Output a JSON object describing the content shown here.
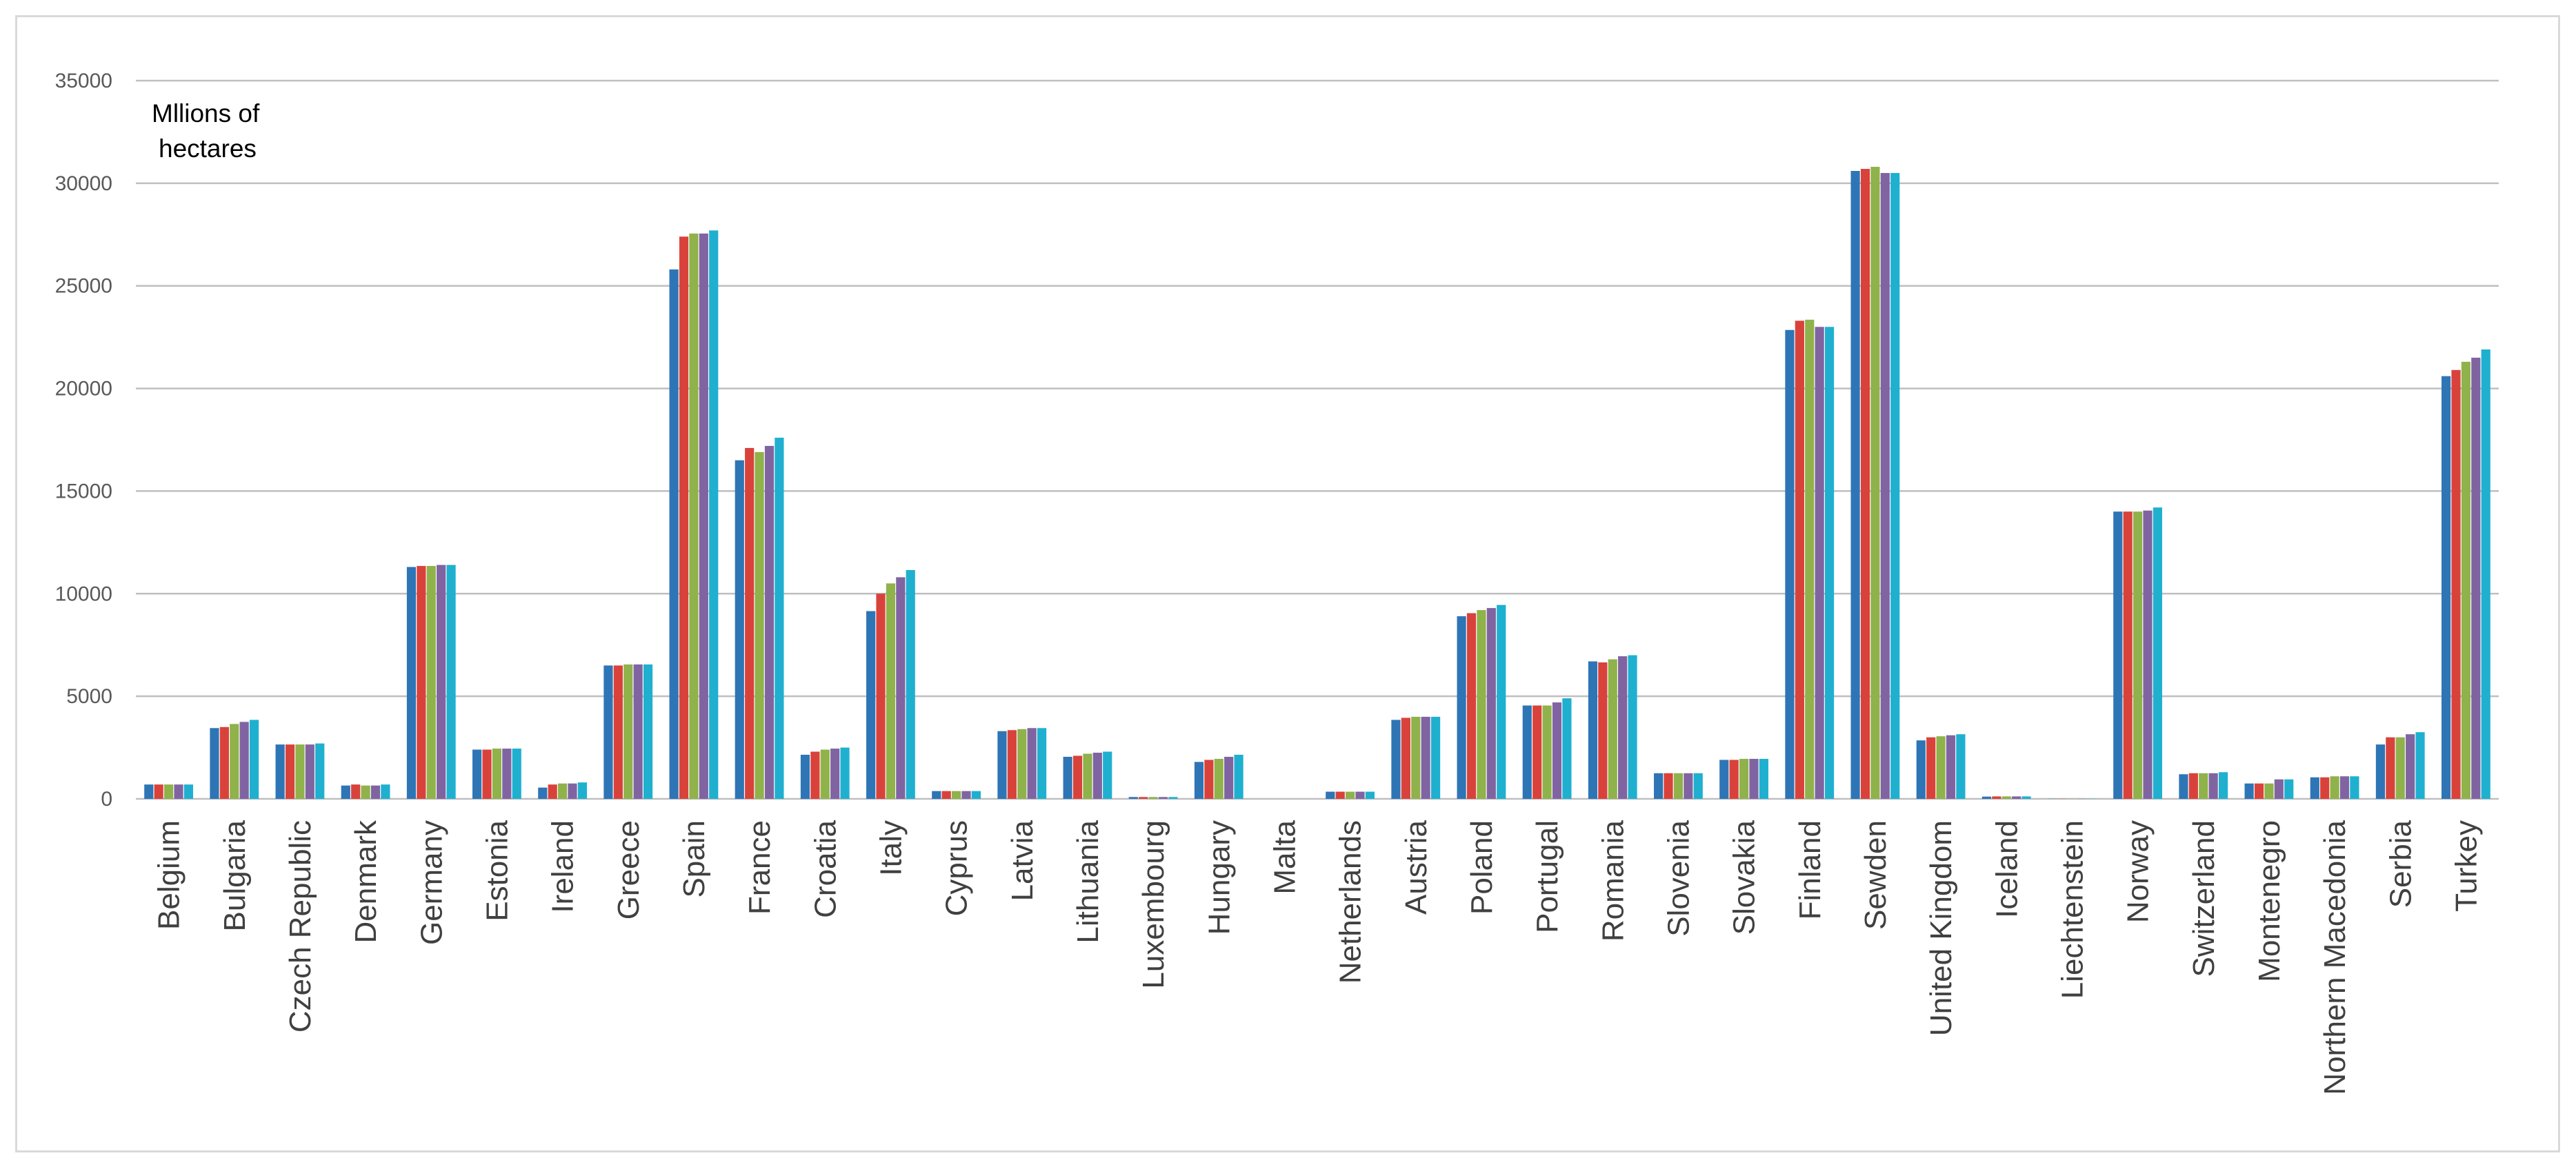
{
  "chart_data": {
    "type": "bar",
    "ylabel": "Mllions of hectares",
    "ylim": [
      0,
      35000
    ],
    "yticks": [
      0,
      5000,
      10000,
      15000,
      20000,
      25000,
      30000,
      35000
    ],
    "grid": true,
    "legend": "none",
    "categories": [
      "Belgium",
      "Bulgaria",
      "Czech Republic",
      "Denmark",
      "Germany",
      "Estonia",
      "Ireland",
      "Greece",
      "Spain",
      "France",
      "Croatia",
      "Italy",
      "Cyprus",
      "Latvia",
      "Lithuania",
      "Luxembourg",
      "Hungary",
      "Malta",
      "Netherlands",
      "Austria",
      "Poland",
      "Portugal",
      "Romania",
      "Slovenia",
      "Slovakia",
      "Finland",
      "Sewden",
      "United Kingdom",
      "Iceland",
      "Liechtenstein",
      "Norway",
      "Switzerland",
      "Montenegro",
      "Northern Macedonia",
      "Serbia",
      "Turkey"
    ],
    "series_colors": [
      "#2e75b6",
      "#d9423b",
      "#8fb24a",
      "#8064a2",
      "#1fb0d0"
    ],
    "series": [
      {
        "values": [
          700,
          3450,
          2650,
          650,
          11300,
          2400,
          550,
          6500,
          25800,
          16500,
          2150,
          9150,
          380,
          3300,
          2050,
          90,
          1800,
          0,
          350,
          3850,
          8900,
          4550,
          6700,
          1250,
          1900,
          22850,
          30600,
          2850,
          110,
          7,
          14000,
          1200,
          750,
          1050,
          2650,
          20600
        ]
      },
      {
        "values": [
          700,
          3500,
          2650,
          700,
          11350,
          2400,
          700,
          6500,
          27400,
          17100,
          2300,
          10000,
          380,
          3350,
          2100,
          90,
          1900,
          0,
          350,
          3950,
          9050,
          4550,
          6650,
          1250,
          1900,
          23300,
          30700,
          3000,
          120,
          7,
          14000,
          1250,
          750,
          1050,
          3000,
          20900
        ]
      },
      {
        "values": [
          700,
          3650,
          2650,
          650,
          11350,
          2450,
          750,
          6550,
          27550,
          16900,
          2400,
          10500,
          380,
          3400,
          2200,
          90,
          1950,
          0,
          350,
          4000,
          9200,
          4550,
          6800,
          1250,
          1950,
          23350,
          30800,
          3050,
          120,
          7,
          14000,
          1250,
          750,
          1100,
          3000,
          21300
        ]
      },
      {
        "values": [
          700,
          3750,
          2650,
          650,
          11400,
          2450,
          750,
          6550,
          27550,
          17200,
          2450,
          10800,
          380,
          3450,
          2250,
          90,
          2050,
          0,
          350,
          4000,
          9300,
          4700,
          6950,
          1250,
          1950,
          23000,
          30500,
          3100,
          120,
          7,
          14050,
          1250,
          950,
          1100,
          3150,
          21500
        ]
      },
      {
        "values": [
          700,
          3850,
          2700,
          700,
          11400,
          2450,
          800,
          6550,
          27700,
          17600,
          2500,
          11150,
          380,
          3450,
          2300,
          90,
          2150,
          0,
          350,
          4000,
          9450,
          4900,
          7000,
          1250,
          1950,
          23000,
          30500,
          3150,
          120,
          7,
          14200,
          1300,
          950,
          1100,
          3250,
          21900
        ]
      }
    ]
  }
}
